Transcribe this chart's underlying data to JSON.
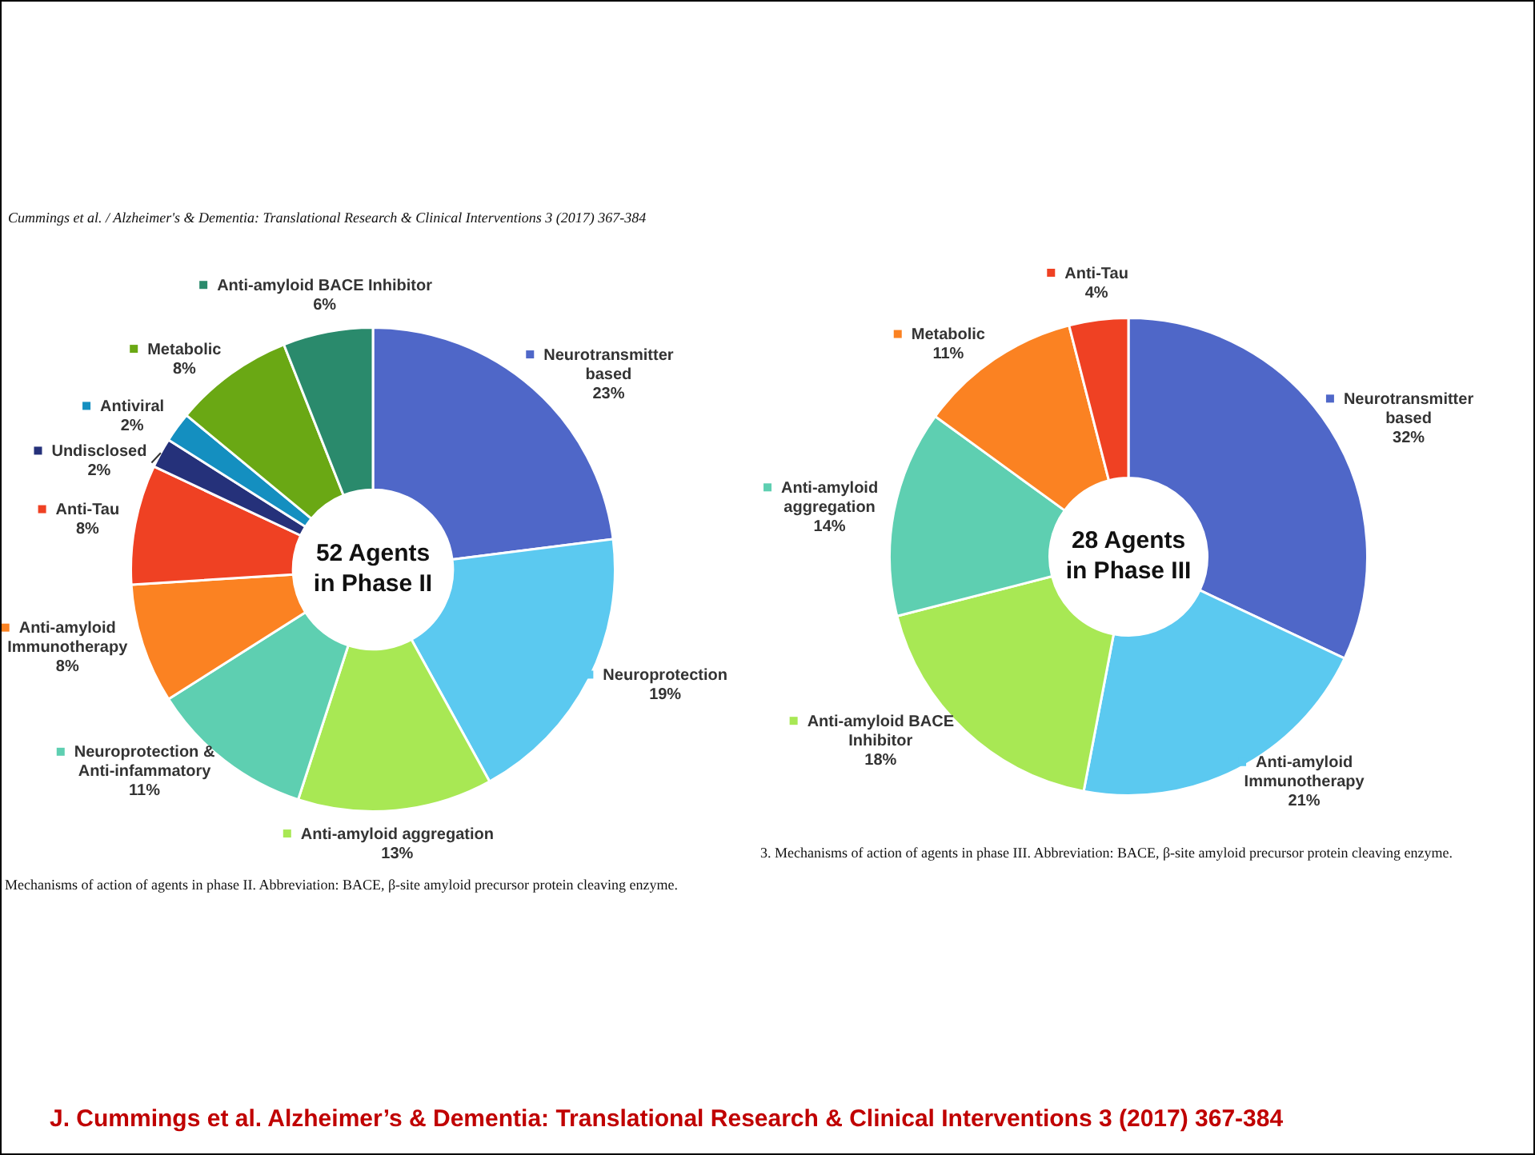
{
  "chart_data": [
    {
      "type": "donut",
      "title": "52 Agents in Phase II",
      "categories": [
        "Neurotransmitter based",
        "Neuroprotection",
        "Anti-amyloid aggregation",
        "Neuroprotection & Anti-infammatory",
        "Anti-amyloid Immunotherapy",
        "Anti-Tau",
        "Undisclosed",
        "Antiviral",
        "Metabolic",
        "Anti-amyloid BACE Inhibitor"
      ],
      "values": [
        23,
        19,
        13,
        11,
        8,
        8,
        2,
        2,
        8,
        6
      ],
      "colors": [
        "#4f67c8",
        "#5bc9f0",
        "#a8e854",
        "#5ecfb1",
        "#fb8222",
        "#ef4123",
        "#25317a",
        "#148fc0",
        "#6aa814",
        "#2a8a6c"
      ],
      "value_labels": [
        "23%",
        "19%",
        "13%",
        "11%",
        "8%",
        "8%",
        "2%",
        "2%",
        "8%",
        "6%"
      ],
      "legend": "right",
      "annotations": [
        "Cummings et al. / Alzheimer's & Dementia: Translational Research & Clinical Interventions 3 (2017) 367-384",
        "Mechanisms of action of agents in phase II. Abbreviation: BACE, β-site amyloid precursor protein cleaving enzyme."
      ]
    },
    {
      "type": "donut",
      "title": "28 Agents in Phase III",
      "categories": [
        "Neurotransmitter based",
        "Anti-amyloid Immunotherapy",
        "Anti-amyloid BACE Inhibitor",
        "Anti-amyloid aggregation",
        "Metabolic",
        "Anti-Tau"
      ],
      "values": [
        32,
        21,
        18,
        14,
        11,
        4
      ],
      "colors": [
        "#4f67c8",
        "#5bc9f0",
        "#a8e854",
        "#5ecfb1",
        "#fb8222",
        "#ef4123"
      ],
      "value_labels": [
        "32%",
        "21%",
        "18%",
        "14%",
        "11%",
        "4%"
      ],
      "legend": "right",
      "annotations": [
        "3. Mechanisms of action of agents in phase III. Abbreviation: BACE, β-site amyloid precursor protein cleaving enzyme.",
        "J. Cummings et al.  Alzheimer’s & Dementia: Translational Research & Clinical Interventions 3 (2017) 367-384"
      ]
    }
  ]
}
